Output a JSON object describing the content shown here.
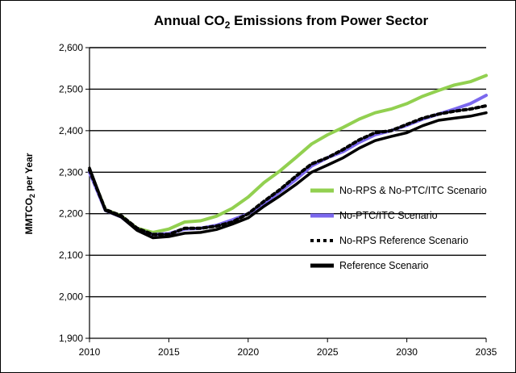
{
  "chart_data": {
    "type": "line",
    "title_main": "Annual CO",
    "title_sub": "2",
    "title_rest": " Emissions from Power Sector",
    "ylabel_main": "MMTCO",
    "ylabel_sub": "2",
    "ylabel_rest": " per Year",
    "xlim": [
      2010,
      2035
    ],
    "ylim": [
      1900,
      2600
    ],
    "x_ticks": [
      2010,
      2015,
      2020,
      2025,
      2030,
      2035
    ],
    "y_ticks": [
      1900,
      2000,
      2100,
      2200,
      2300,
      2400,
      2500,
      2600
    ],
    "y_tick_labels": [
      "1,900",
      "2,000",
      "2,100",
      "2,200",
      "2,300",
      "2,400",
      "2,500",
      "2,600"
    ],
    "grid": "horizontal",
    "legend_position": "right",
    "x": [
      2010,
      2011,
      2012,
      2013,
      2014,
      2015,
      2016,
      2017,
      2018,
      2019,
      2020,
      2021,
      2022,
      2023,
      2024,
      2025,
      2026,
      2027,
      2028,
      2029,
      2030,
      2031,
      2032,
      2033,
      2034,
      2035
    ],
    "series": [
      {
        "name": "No-RPS & No-PTC/ITC Scenario",
        "color": "#92d050",
        "style": "solid",
        "values": [
          2305,
          2210,
          2195,
          2165,
          2155,
          2163,
          2180,
          2183,
          2194,
          2213,
          2240,
          2275,
          2303,
          2335,
          2368,
          2390,
          2408,
          2428,
          2443,
          2452,
          2465,
          2483,
          2497,
          2510,
          2518,
          2533
        ]
      },
      {
        "name": "No-PTC/ITC Scenario",
        "color": "#7b68ee",
        "style": "solid",
        "values": [
          2300,
          2208,
          2192,
          2162,
          2150,
          2152,
          2163,
          2165,
          2172,
          2185,
          2200,
          2225,
          2253,
          2282,
          2315,
          2335,
          2350,
          2372,
          2390,
          2400,
          2413,
          2428,
          2440,
          2452,
          2465,
          2485
        ]
      },
      {
        "name": "No-RPS Reference Scenario",
        "color": "#000000",
        "style": "dotted",
        "values": [
          2305,
          2210,
          2195,
          2165,
          2150,
          2150,
          2165,
          2165,
          2170,
          2180,
          2200,
          2230,
          2258,
          2290,
          2320,
          2335,
          2355,
          2378,
          2395,
          2400,
          2415,
          2430,
          2440,
          2447,
          2452,
          2460
        ]
      },
      {
        "name": "Reference Scenario",
        "color": "#000000",
        "style": "solid",
        "values": [
          2310,
          2208,
          2192,
          2160,
          2142,
          2145,
          2153,
          2155,
          2162,
          2175,
          2190,
          2218,
          2243,
          2270,
          2300,
          2317,
          2335,
          2358,
          2376,
          2386,
          2395,
          2412,
          2425,
          2430,
          2435,
          2443
        ]
      }
    ]
  }
}
